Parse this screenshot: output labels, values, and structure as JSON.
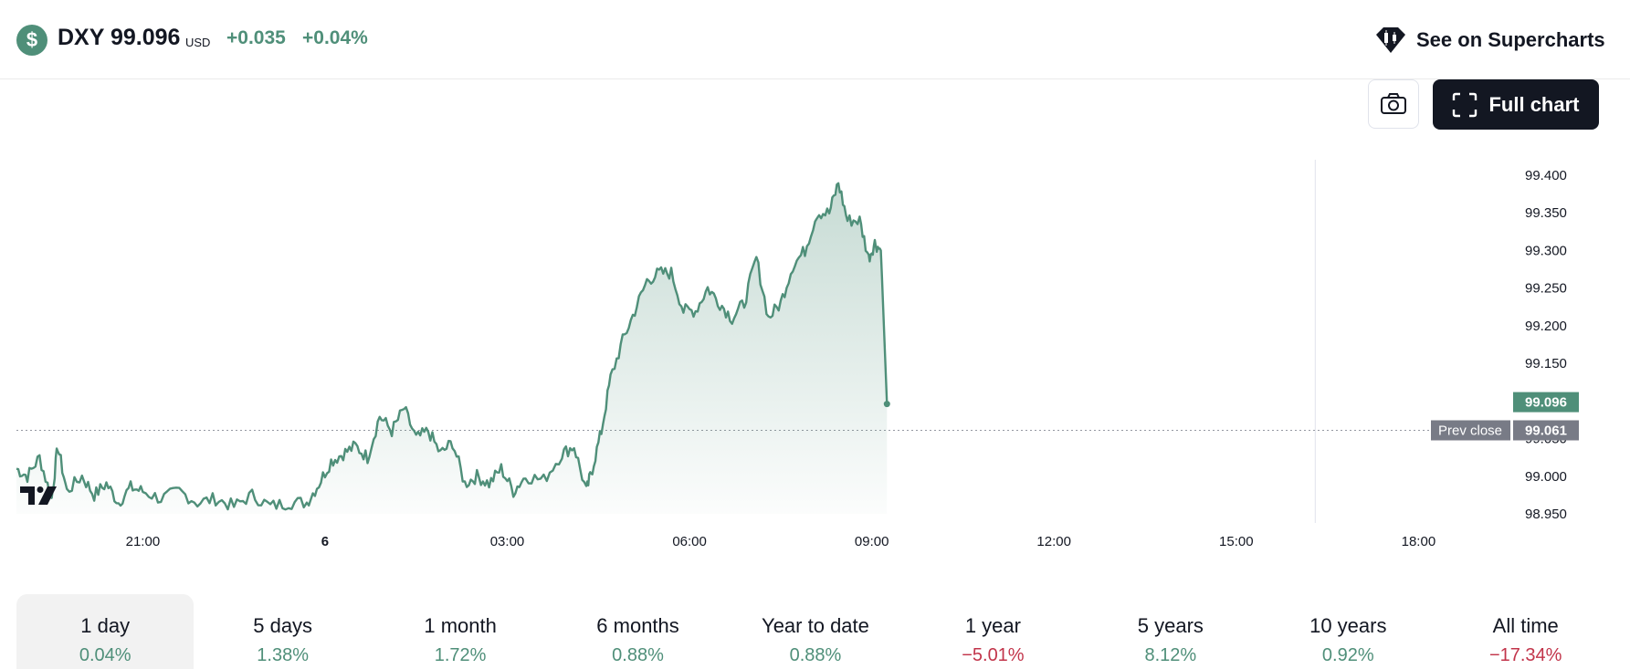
{
  "header": {
    "logo_glyph": "$",
    "symbol": "DXY",
    "price": "99.096",
    "currency": "USD",
    "change": "+0.035",
    "change_pct": "+0.04%",
    "supercharts_label": "See on Supercharts",
    "full_chart_label": "Full chart"
  },
  "colors": {
    "accent": "#4f8f79",
    "negative": "#c2344a",
    "dark": "#131722",
    "prev_close_tag": "#787b86"
  },
  "icons": [
    "dollar-logo-icon",
    "supercharts-icon",
    "camera-icon",
    "fullscreen-icon",
    "tradingview-logo-icon"
  ],
  "chart_data": {
    "type": "area",
    "x_labels": [
      {
        "label": "21:00",
        "h": 21
      },
      {
        "label": "6",
        "h": 24
      },
      {
        "label": "03:00",
        "h": 27
      },
      {
        "label": "06:00",
        "h": 30
      },
      {
        "label": "09:00",
        "h": 33
      },
      {
        "label": "12:00",
        "h": 36
      },
      {
        "label": "15:00",
        "h": 39
      },
      {
        "label": "18:00",
        "h": 42
      }
    ],
    "y_ticks": [
      "99.400",
      "99.350",
      "99.300",
      "99.250",
      "99.200",
      "99.150",
      "99.100",
      "99.050",
      "99.000",
      "98.950"
    ],
    "ylim": [
      98.95,
      99.4
    ],
    "xlim_hours": [
      18.92,
      42.37
    ],
    "session_end_h": 40.3,
    "last_price_label": "99.096",
    "prev_close_label": "Prev close",
    "prev_close_value": "99.061",
    "series": [
      {
        "x_hours": [
          18.92,
          19.1,
          19.3,
          19.5,
          19.6,
          19.75,
          20.0,
          20.2,
          20.4,
          20.6,
          20.8,
          21.0,
          21.3,
          21.6,
          21.9,
          22.2,
          22.5,
          22.8,
          23.1,
          23.4,
          23.7,
          23.9,
          24.1,
          24.3,
          24.5,
          24.7,
          24.9,
          25.1,
          25.3,
          25.5,
          25.7,
          25.9,
          26.1,
          26.3,
          26.5,
          26.7,
          26.9,
          27.1,
          27.3,
          27.6,
          27.9,
          28.1,
          28.3,
          28.4,
          28.55,
          28.7,
          28.9,
          29.1,
          29.3,
          29.5,
          29.7,
          29.9,
          30.1,
          30.3,
          30.5,
          30.7,
          30.9,
          31.1,
          31.3,
          31.5,
          31.7,
          31.9,
          32.1,
          32.3,
          32.45,
          32.6,
          32.8,
          32.95,
          33.05,
          33.15,
          33.25
        ],
        "values": [
          99.01,
          99.0,
          99.025,
          98.97,
          99.04,
          98.98,
          99.0,
          98.975,
          98.99,
          98.965,
          98.985,
          98.98,
          98.97,
          98.98,
          98.965,
          98.97,
          98.96,
          98.975,
          98.96,
          98.965,
          98.965,
          98.99,
          99.02,
          99.03,
          99.04,
          99.025,
          99.08,
          99.06,
          99.09,
          99.05,
          99.06,
          99.03,
          99.045,
          98.99,
          99.0,
          98.99,
          99.01,
          98.98,
          99.0,
          98.995,
          99.03,
          99.04,
          98.98,
          99.01,
          99.06,
          99.13,
          99.18,
          99.22,
          99.26,
          99.27,
          99.27,
          99.22,
          99.22,
          99.25,
          99.23,
          99.21,
          99.23,
          99.29,
          99.21,
          99.23,
          99.28,
          99.3,
          99.35,
          99.35,
          99.39,
          99.34,
          99.34,
          99.29,
          99.31,
          99.3,
          99.096
        ]
      }
    ]
  },
  "tabs": [
    {
      "label": "1 day",
      "value": "0.04%",
      "tone": "pos"
    },
    {
      "label": "5 days",
      "value": "1.38%",
      "tone": "pos"
    },
    {
      "label": "1 month",
      "value": "1.72%",
      "tone": "pos"
    },
    {
      "label": "6 months",
      "value": "0.88%",
      "tone": "pos"
    },
    {
      "label": "Year to date",
      "value": "0.88%",
      "tone": "pos"
    },
    {
      "label": "1 year",
      "value": "−5.01%",
      "tone": "neg"
    },
    {
      "label": "5 years",
      "value": "8.12%",
      "tone": "pos"
    },
    {
      "label": "10 years",
      "value": "0.92%",
      "tone": "pos"
    },
    {
      "label": "All time",
      "value": "−17.34%",
      "tone": "neg"
    }
  ]
}
